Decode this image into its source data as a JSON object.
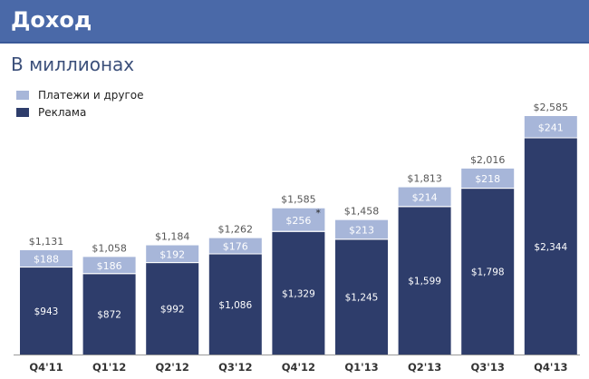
{
  "header": {
    "title": "Доход"
  },
  "subtitle": "В миллионах",
  "colors": {
    "header_bg": "#4a69a8",
    "ads": "#2e3d6b",
    "payments": "#a7b6d9",
    "total_label": "#555555"
  },
  "chart_data": {
    "type": "bar",
    "stacked": true,
    "title": "Доход",
    "subtitle": "В миллионах",
    "legend_position": "top-left",
    "grid": false,
    "categories": [
      "Q4'11",
      "Q1'12",
      "Q2'12",
      "Q3'12",
      "Q4'12",
      "Q1'13",
      "Q2'13",
      "Q3'13",
      "Q4'13"
    ],
    "series": [
      {
        "name": "Реклама",
        "values": [
          943,
          872,
          992,
          1086,
          1329,
          1245,
          1599,
          1798,
          2344
        ],
        "labels": [
          "$943",
          "$872",
          "$992",
          "$1,086",
          "$1,329",
          "$1,245",
          "$1,599",
          "$1,798",
          "$2,344"
        ]
      },
      {
        "name": "Платежи и другое",
        "values": [
          188,
          186,
          192,
          176,
          256,
          213,
          214,
          218,
          241
        ],
        "labels": [
          "$188",
          "$186",
          "$192",
          "$176",
          "$256",
          "$213",
          "$214",
          "$218",
          "$241"
        ]
      }
    ],
    "totals": [
      1131,
      1058,
      1184,
      1262,
      1585,
      1458,
      1813,
      2016,
      2585
    ],
    "total_labels": [
      "$1,131",
      "$1,058",
      "$1,184",
      "$1,262",
      "$1,585",
      "$1,458",
      "$1,813",
      "$2,016",
      "$2,585"
    ],
    "annotation": {
      "category": "Q4'12",
      "series": "Платежи и другое",
      "text": "*"
    },
    "ylim": [
      0,
      2585
    ]
  }
}
